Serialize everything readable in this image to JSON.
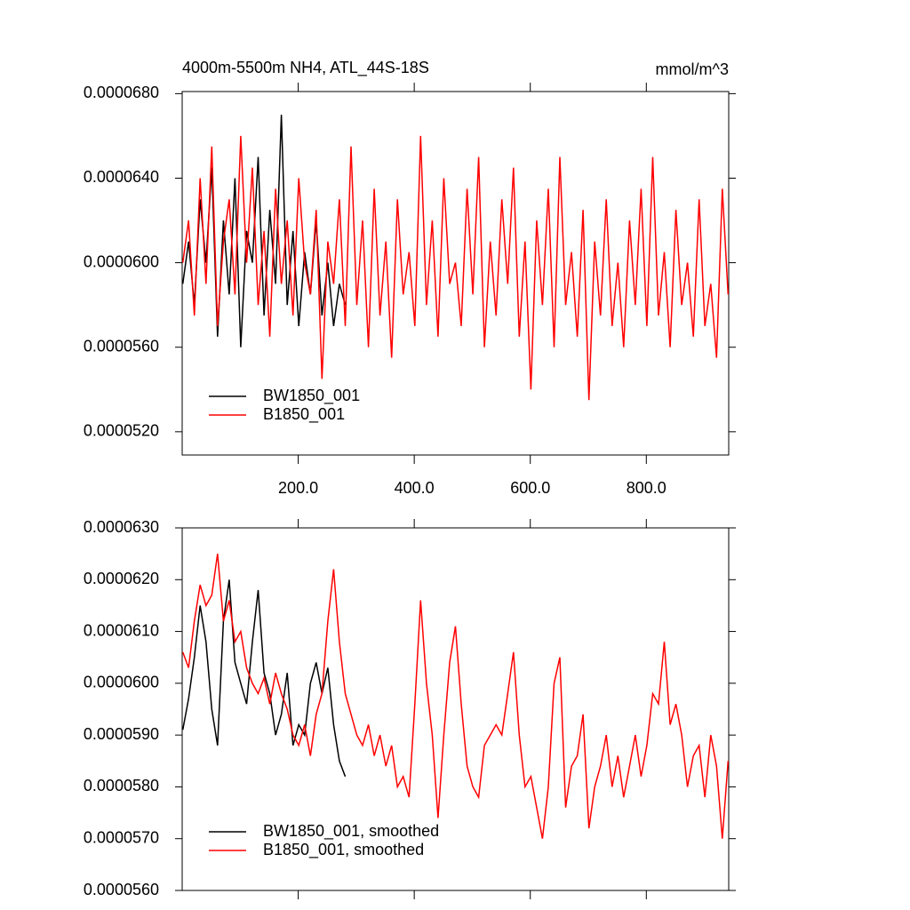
{
  "chart_data": [
    {
      "type": "line",
      "title": "4000m-5500m NH4, ATL_44S-18S",
      "units": "mmol/m^3",
      "legend": "lower left",
      "xlim": [
        0,
        942
      ],
      "ylim": [
        5.09e-05,
        6.81e-05
      ],
      "xticks": [
        {
          "value": 200,
          "label": "200.0"
        },
        {
          "value": 400,
          "label": "400.0"
        },
        {
          "value": 600,
          "label": "600.0"
        },
        {
          "value": 800,
          "label": "800.0"
        }
      ],
      "yticks": [
        {
          "value": 5.2e-05,
          "label": "0.0000520"
        },
        {
          "value": 5.6e-05,
          "label": "0.0000560"
        },
        {
          "value": 6e-05,
          "label": "0.0000600"
        },
        {
          "value": 6.4e-05,
          "label": "0.0000640"
        },
        {
          "value": 6.8e-05,
          "label": "0.0000680"
        }
      ],
      "series": [
        {
          "name": "BW1850_001",
          "color": "#000000",
          "x": [
            1,
            11,
            21,
            31,
            41,
            51,
            61,
            71,
            81,
            91,
            101,
            111,
            121,
            131,
            141,
            151,
            161,
            171,
            181,
            191,
            201,
            211,
            221,
            231,
            241,
            251,
            261,
            271,
            281
          ],
          "values": [
            5.9e-05,
            6.1e-05,
            5.8e-05,
            6.3e-05,
            6e-05,
            6.45e-05,
            5.65e-05,
            6.2e-05,
            5.85e-05,
            6.4e-05,
            5.6e-05,
            6.15e-05,
            6e-05,
            6.5e-05,
            5.75e-05,
            6.25e-05,
            5.9e-05,
            6.7e-05,
            5.8e-05,
            6.15e-05,
            5.7e-05,
            6.05e-05,
            5.85e-05,
            6.2e-05,
            5.75e-05,
            6e-05,
            5.7e-05,
            5.9e-05,
            5.8e-05
          ]
        },
        {
          "name": "B1850_001",
          "color": "#ff0000",
          "x": [
            1,
            11,
            21,
            31,
            41,
            51,
            61,
            71,
            81,
            91,
            101,
            111,
            121,
            131,
            141,
            151,
            161,
            171,
            181,
            191,
            201,
            211,
            221,
            231,
            241,
            251,
            261,
            271,
            281,
            291,
            301,
            311,
            321,
            331,
            341,
            351,
            361,
            371,
            381,
            391,
            401,
            411,
            421,
            431,
            441,
            451,
            461,
            471,
            481,
            491,
            501,
            511,
            521,
            531,
            541,
            551,
            561,
            571,
            581,
            591,
            601,
            611,
            621,
            631,
            641,
            651,
            661,
            671,
            681,
            691,
            701,
            711,
            721,
            731,
            741,
            751,
            761,
            771,
            781,
            791,
            801,
            811,
            821,
            831,
            841,
            851,
            861,
            871,
            881,
            891,
            901,
            911,
            921,
            931,
            941
          ],
          "values": [
            6e-05,
            6.2e-05,
            5.75e-05,
            6.4e-05,
            5.9e-05,
            6.55e-05,
            5.7e-05,
            6.1e-05,
            6.3e-05,
            5.85e-05,
            6.6e-05,
            6e-05,
            6.45e-05,
            5.8e-05,
            6.15e-05,
            5.65e-05,
            6.35e-05,
            5.9e-05,
            6.2e-05,
            5.75e-05,
            6.4e-05,
            6e-05,
            5.85e-05,
            6.25e-05,
            5.45e-05,
            6.1e-05,
            5.9e-05,
            6.3e-05,
            5.7e-05,
            6.55e-05,
            5.8e-05,
            6.2e-05,
            5.6e-05,
            6.35e-05,
            5.75e-05,
            6.1e-05,
            5.55e-05,
            6.3e-05,
            5.85e-05,
            6.05e-05,
            5.7e-05,
            6.6e-05,
            5.8e-05,
            6.2e-05,
            5.65e-05,
            6.4e-05,
            5.9e-05,
            6e-05,
            5.7e-05,
            6.35e-05,
            5.85e-05,
            6.5e-05,
            5.6e-05,
            6.1e-05,
            5.75e-05,
            6.3e-05,
            5.9e-05,
            6.45e-05,
            5.65e-05,
            6.1e-05,
            5.4e-05,
            6.2e-05,
            5.8e-05,
            6.35e-05,
            5.6e-05,
            6.5e-05,
            5.8e-05,
            6.05e-05,
            5.65e-05,
            6.25e-05,
            5.35e-05,
            6.1e-05,
            5.75e-05,
            6.3e-05,
            5.7e-05,
            6e-05,
            5.6e-05,
            6.2e-05,
            5.8e-05,
            6.35e-05,
            5.7e-05,
            6.5e-05,
            5.75e-05,
            6.05e-05,
            5.6e-05,
            6.25e-05,
            5.8e-05,
            6e-05,
            5.65e-05,
            6.3e-05,
            5.7e-05,
            5.9e-05,
            5.55e-05,
            6.35e-05,
            5.85e-05
          ]
        }
      ]
    },
    {
      "type": "line",
      "legend": "lower left",
      "xlim": [
        0,
        942
      ],
      "ylim": [
        5.6e-05,
        6.3e-05
      ],
      "xticks": [
        200,
        400,
        600,
        800
      ],
      "yticks": [
        {
          "value": 5.6e-05,
          "label": "0.0000560"
        },
        {
          "value": 5.7e-05,
          "label": "0.0000570"
        },
        {
          "value": 5.8e-05,
          "label": "0.0000580"
        },
        {
          "value": 5.9e-05,
          "label": "0.0000590"
        },
        {
          "value": 6e-05,
          "label": "0.0000600"
        },
        {
          "value": 6.1e-05,
          "label": "0.0000610"
        },
        {
          "value": 6.2e-05,
          "label": "0.0000620"
        },
        {
          "value": 6.3e-05,
          "label": "0.0000630"
        }
      ],
      "series": [
        {
          "name": "BW1850_001, smoothed",
          "color": "#000000",
          "x": [
            1,
            11,
            21,
            31,
            41,
            51,
            61,
            71,
            81,
            91,
            101,
            111,
            121,
            131,
            141,
            151,
            161,
            171,
            181,
            191,
            201,
            211,
            221,
            231,
            241,
            251,
            261,
            271,
            281
          ],
          "values": [
            5.91e-05,
            5.97e-05,
            6.05e-05,
            6.15e-05,
            6.08e-05,
            5.95e-05,
            5.88e-05,
            6.12e-05,
            6.2e-05,
            6.04e-05,
            6e-05,
            5.96e-05,
            6.08e-05,
            6.18e-05,
            6.02e-05,
            5.98e-05,
            5.9e-05,
            5.94e-05,
            6.02e-05,
            5.88e-05,
            5.92e-05,
            5.9e-05,
            6e-05,
            6.04e-05,
            5.98e-05,
            6.03e-05,
            5.92e-05,
            5.85e-05,
            5.82e-05
          ]
        },
        {
          "name": "B1850_001, smoothed",
          "color": "#ff0000",
          "x": [
            1,
            11,
            21,
            31,
            41,
            51,
            61,
            71,
            81,
            91,
            101,
            111,
            121,
            131,
            141,
            151,
            161,
            171,
            181,
            191,
            201,
            211,
            221,
            231,
            241,
            251,
            261,
            271,
            281,
            291,
            301,
            311,
            321,
            331,
            341,
            351,
            361,
            371,
            381,
            391,
            401,
            411,
            421,
            431,
            441,
            451,
            461,
            471,
            481,
            491,
            501,
            511,
            521,
            531,
            541,
            551,
            561,
            571,
            581,
            591,
            601,
            611,
            621,
            631,
            641,
            651,
            661,
            671,
            681,
            691,
            701,
            711,
            721,
            731,
            741,
            751,
            761,
            771,
            781,
            791,
            801,
            811,
            821,
            831,
            841,
            851,
            861,
            871,
            881,
            891,
            901,
            911,
            921,
            931,
            941
          ],
          "values": [
            6.06e-05,
            6.03e-05,
            6.12e-05,
            6.19e-05,
            6.15e-05,
            6.17e-05,
            6.25e-05,
            6.12e-05,
            6.16e-05,
            6.08e-05,
            6.1e-05,
            6.03e-05,
            6e-05,
            5.98e-05,
            6.01e-05,
            5.96e-05,
            6.02e-05,
            5.98e-05,
            5.95e-05,
            5.9e-05,
            5.88e-05,
            5.92e-05,
            5.86e-05,
            5.94e-05,
            5.98e-05,
            6.12e-05,
            6.22e-05,
            6.08e-05,
            5.98e-05,
            5.94e-05,
            5.9e-05,
            5.88e-05,
            5.92e-05,
            5.86e-05,
            5.9e-05,
            5.84e-05,
            5.88e-05,
            5.8e-05,
            5.82e-05,
            5.78e-05,
            5.96e-05,
            6.16e-05,
            6e-05,
            5.9e-05,
            5.74e-05,
            5.9e-05,
            6.04e-05,
            6.11e-05,
            5.96e-05,
            5.84e-05,
            5.8e-05,
            5.78e-05,
            5.88e-05,
            5.9e-05,
            5.92e-05,
            5.9e-05,
            5.98e-05,
            6.06e-05,
            5.9e-05,
            5.8e-05,
            5.82e-05,
            5.76e-05,
            5.7e-05,
            5.8e-05,
            6e-05,
            6.05e-05,
            5.76e-05,
            5.84e-05,
            5.86e-05,
            5.94e-05,
            5.72e-05,
            5.8e-05,
            5.84e-05,
            5.9e-05,
            5.8e-05,
            5.86e-05,
            5.78e-05,
            5.84e-05,
            5.9e-05,
            5.82e-05,
            5.88e-05,
            5.98e-05,
            5.96e-05,
            6.08e-05,
            5.92e-05,
            5.96e-05,
            5.9e-05,
            5.8e-05,
            5.86e-05,
            5.88e-05,
            5.78e-05,
            5.9e-05,
            5.84e-05,
            5.7e-05,
            5.85e-05
          ]
        }
      ]
    }
  ]
}
